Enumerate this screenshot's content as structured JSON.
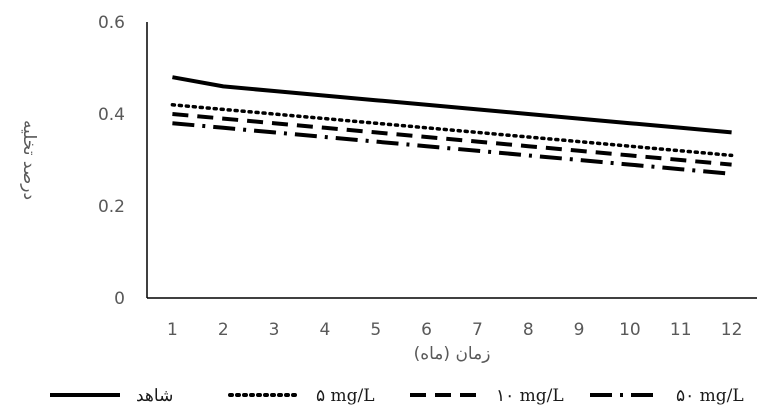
{
  "chart_data": {
    "type": "line",
    "title": "",
    "xlabel": "زمان (ماه)",
    "ylabel": "درصد تخلیه",
    "x": [
      1,
      2,
      3,
      4,
      5,
      6,
      7,
      8,
      9,
      10,
      11,
      12
    ],
    "xticks": [
      "1",
      "2",
      "3",
      "4",
      "5",
      "6",
      "7",
      "8",
      "9",
      "10",
      "11",
      "12"
    ],
    "yticks": [
      "0",
      "0.2",
      "0.4",
      "0.6"
    ],
    "ylim": [
      0,
      0.6
    ],
    "grid": false,
    "legend_position": "bottom",
    "series": [
      {
        "name": "شاهد",
        "style": "solid",
        "color": "#000000",
        "values": [
          0.48,
          0.46,
          0.45,
          0.44,
          0.43,
          0.42,
          0.41,
          0.4,
          0.39,
          0.38,
          0.37,
          0.36
        ]
      },
      {
        "name": "۵ mg/L",
        "style": "dotted",
        "color": "#000000",
        "values": [
          0.42,
          0.41,
          0.4,
          0.39,
          0.38,
          0.37,
          0.36,
          0.35,
          0.34,
          0.33,
          0.32,
          0.31
        ]
      },
      {
        "name": "۱۰ mg/L",
        "style": "dashed",
        "color": "#000000",
        "values": [
          0.4,
          0.39,
          0.38,
          0.37,
          0.36,
          0.35,
          0.34,
          0.33,
          0.32,
          0.31,
          0.3,
          0.29
        ]
      },
      {
        "name": "۵۰ mg/L",
        "style": "dashdot",
        "color": "#000000",
        "values": [
          0.38,
          0.37,
          0.36,
          0.35,
          0.34,
          0.33,
          0.32,
          0.31,
          0.3,
          0.29,
          0.28,
          0.27
        ]
      }
    ]
  }
}
